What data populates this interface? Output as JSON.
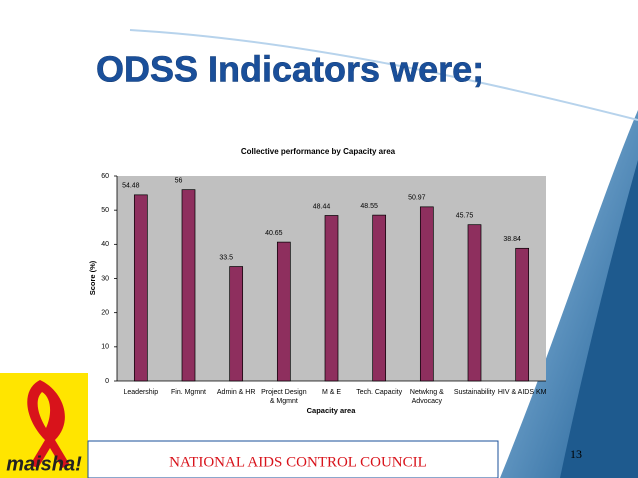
{
  "slide": {
    "title": "ODSS Indicators were;",
    "footer": "NATIONAL AIDS CONTROL COUNCIL",
    "page_number": "13",
    "logo_text": "maisha!"
  },
  "chart_data": {
    "type": "bar",
    "title": "Collective performance by Capacity area",
    "x_label": "Capacity area",
    "y_label": "Score (%)",
    "categories": [
      "Leadership",
      "Fin. Mgmnt",
      "Admin & HR",
      "Project Design & Mgmnt",
      "M & E",
      "Tech. Capacity",
      "Netwkng & Advocacy",
      "Sustainability",
      "HIV & AIDS KM"
    ],
    "values": [
      54.48,
      56,
      33.5,
      40.65,
      48.44,
      48.55,
      50.97,
      45.75,
      38.84
    ],
    "color": "#8e2f5e",
    "ylim": [
      0,
      60
    ],
    "yticks": [
      0,
      10,
      20,
      30,
      40,
      50,
      60
    ],
    "grid": false
  }
}
